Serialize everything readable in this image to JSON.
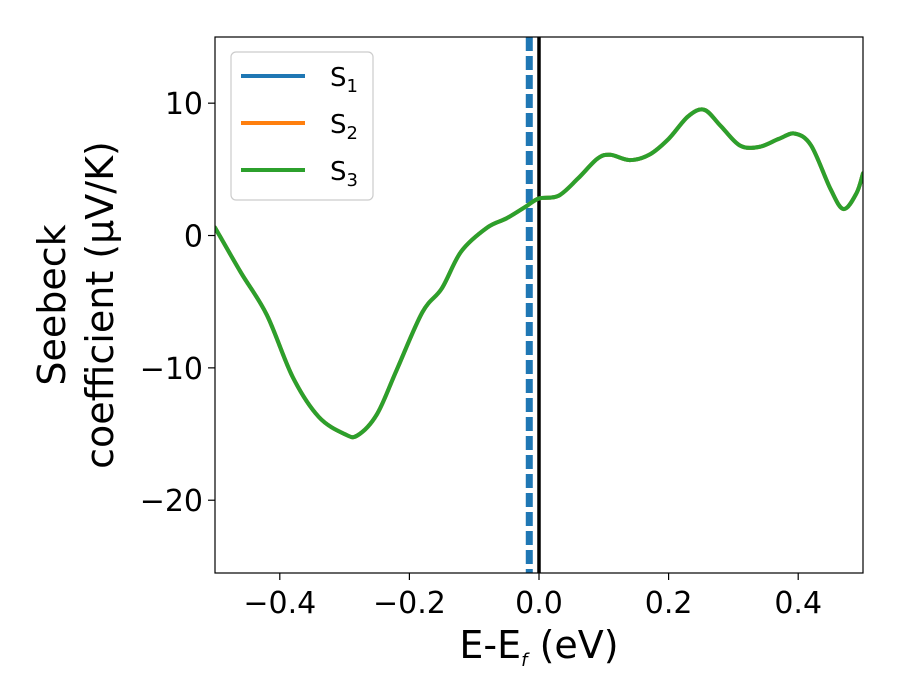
{
  "chart_data": {
    "type": "line",
    "xlabel_main": "E-E",
    "xlabel_sub": "f",
    "xlabel_tail": " (eV)",
    "ylabel_line1": "Seebeck",
    "ylabel_line2": "coefficient  (μV/K)",
    "xlim": [
      -0.5,
      0.5
    ],
    "ylim": [
      -25.5,
      15
    ],
    "xticks": [
      -0.4,
      -0.2,
      0.0,
      0.2,
      0.4
    ],
    "xtick_labels": [
      "−0.4",
      "−0.2",
      "0.0",
      "0.2",
      "0.4"
    ],
    "yticks": [
      -20,
      -10,
      0,
      10
    ],
    "ytick_labels": [
      "−20",
      "−10",
      "0",
      "10"
    ],
    "legend_position": "top-left",
    "vertical_lines": [
      {
        "x": -0.015,
        "style": "dashed",
        "color": "#1f77b4"
      },
      {
        "x": 0.0,
        "style": "solid",
        "color": "#000000"
      }
    ],
    "series": [
      {
        "name": "S",
        "subscript": "1",
        "color": "#1f77b4",
        "x": [
          -0.5,
          -0.46,
          -0.42,
          -0.38,
          -0.34,
          -0.3,
          -0.28,
          -0.25,
          -0.22,
          -0.18,
          -0.15,
          -0.12,
          -0.08,
          -0.05,
          -0.02,
          0.0,
          0.03,
          0.06,
          0.09,
          0.11,
          0.14,
          0.17,
          0.2,
          0.23,
          0.255,
          0.28,
          0.31,
          0.34,
          0.37,
          0.395,
          0.42,
          0.45,
          0.47,
          0.49,
          0.5
        ],
        "y": [
          0.6,
          -2.8,
          -6.0,
          -10.7,
          -13.7,
          -15.0,
          -15.1,
          -13.5,
          -10.2,
          -5.8,
          -4.0,
          -1.2,
          0.6,
          1.3,
          2.2,
          2.8,
          3.0,
          4.3,
          5.8,
          6.1,
          5.7,
          6.1,
          7.3,
          9.0,
          9.5,
          8.3,
          6.8,
          6.7,
          7.3,
          7.7,
          6.8,
          3.5,
          2.0,
          3.2,
          4.7
        ]
      },
      {
        "name": "S",
        "subscript": "2",
        "color": "#ff7f0e",
        "x": [
          -0.5,
          -0.46,
          -0.42,
          -0.38,
          -0.34,
          -0.3,
          -0.28,
          -0.25,
          -0.22,
          -0.18,
          -0.15,
          -0.12,
          -0.08,
          -0.05,
          -0.02,
          0.0,
          0.03,
          0.06,
          0.09,
          0.11,
          0.14,
          0.17,
          0.2,
          0.23,
          0.255,
          0.28,
          0.31,
          0.34,
          0.37,
          0.395,
          0.42,
          0.45,
          0.47,
          0.49,
          0.5
        ],
        "y": [
          0.6,
          -2.8,
          -6.0,
          -10.7,
          -13.7,
          -15.0,
          -15.1,
          -13.5,
          -10.2,
          -5.8,
          -4.0,
          -1.2,
          0.6,
          1.3,
          2.2,
          2.8,
          3.0,
          4.3,
          5.8,
          6.1,
          5.7,
          6.1,
          7.3,
          9.0,
          9.5,
          8.3,
          6.8,
          6.7,
          7.3,
          7.7,
          6.8,
          3.5,
          2.0,
          3.2,
          4.7
        ]
      },
      {
        "name": "S",
        "subscript": "3",
        "color": "#2ca02c",
        "x": [
          -0.5,
          -0.46,
          -0.42,
          -0.38,
          -0.34,
          -0.3,
          -0.28,
          -0.25,
          -0.22,
          -0.18,
          -0.15,
          -0.12,
          -0.08,
          -0.05,
          -0.02,
          0.0,
          0.03,
          0.06,
          0.09,
          0.11,
          0.14,
          0.17,
          0.2,
          0.23,
          0.255,
          0.28,
          0.31,
          0.34,
          0.37,
          0.395,
          0.42,
          0.45,
          0.47,
          0.49,
          0.5
        ],
        "y": [
          0.6,
          -2.8,
          -6.0,
          -10.7,
          -13.7,
          -15.0,
          -15.1,
          -13.5,
          -10.2,
          -5.8,
          -4.0,
          -1.2,
          0.6,
          1.3,
          2.2,
          2.8,
          3.0,
          4.3,
          5.8,
          6.1,
          5.7,
          6.1,
          7.3,
          9.0,
          9.5,
          8.3,
          6.8,
          6.7,
          7.3,
          7.7,
          6.8,
          3.5,
          2.0,
          3.2,
          4.7
        ]
      }
    ]
  }
}
